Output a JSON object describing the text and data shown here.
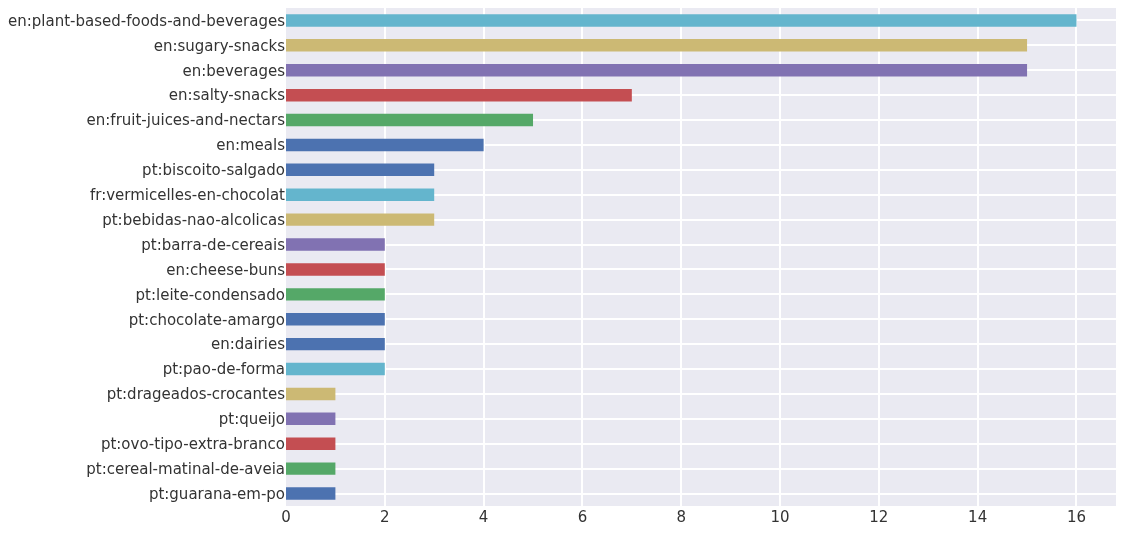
{
  "chart_data": {
    "type": "bar",
    "orientation": "horizontal",
    "categories": [
      "en:plant-based-foods-and-beverages",
      "en:sugary-snacks",
      "en:beverages",
      "en:salty-snacks",
      "en:fruit-juices-and-nectars",
      "en:meals",
      "pt:biscoito-salgado",
      "fr:vermicelles-en-chocolat",
      "pt:bebidas-nao-alcolicas",
      "pt:barra-de-cereais",
      "en:cheese-buns",
      "pt:leite-condensado",
      "pt:chocolate-amargo",
      "en:dairies",
      "pt:pao-de-forma",
      "pt:drageados-crocantes",
      "pt:queijo",
      "pt:ovo-tipo-extra-branco",
      "pt:cereal-matinal-de-aveia",
      "pt:guarana-em-po"
    ],
    "values": [
      16,
      15,
      15,
      7,
      5,
      4,
      3,
      3,
      3,
      2,
      2,
      2,
      2,
      2,
      2,
      1,
      1,
      1,
      1,
      1
    ],
    "colors": [
      "#64b5cd",
      "#ccb974",
      "#8172b2",
      "#c44e52",
      "#55a868",
      "#4c72b0",
      "#4c72b0",
      "#64b5cd",
      "#ccb974",
      "#8172b2",
      "#c44e52",
      "#55a868",
      "#4c72b0",
      "#4c72b0",
      "#64b5cd",
      "#ccb974",
      "#8172b2",
      "#c44e52",
      "#55a868",
      "#4c72b0"
    ],
    "xlim": [
      0,
      16.8
    ],
    "xticks": [
      0,
      2,
      4,
      6,
      8,
      10,
      12,
      14,
      16
    ],
    "grid": true
  }
}
